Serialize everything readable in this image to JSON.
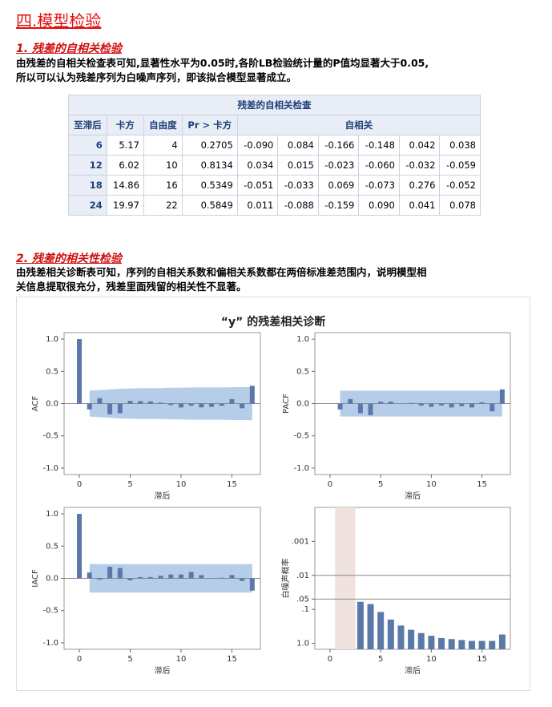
{
  "heading": "四.模型检验",
  "section1": {
    "title": "1. 残差的自相关检验",
    "text": [
      "由残差的自相关检查表可知,显著性水平为0.05时,各阶LB检验统计量的P值均显著大于0.05,",
      "所以可以认为残差序列为白噪声序列，即该拟合模型显著成立。"
    ]
  },
  "table": {
    "title": "残差的自相关检查",
    "columns": [
      "至滞后",
      "卡方",
      "自由度",
      "Pr > 卡方",
      "自相关"
    ],
    "rows": [
      [
        "6",
        "5.17",
        "4",
        "0.2705",
        "-0.090",
        "0.084",
        "-0.166",
        "-0.148",
        "0.042",
        "0.038"
      ],
      [
        "12",
        "6.02",
        "10",
        "0.8134",
        "0.034",
        "0.015",
        "-0.023",
        "-0.060",
        "-0.032",
        "-0.059"
      ],
      [
        "18",
        "14.86",
        "16",
        "0.5349",
        "-0.051",
        "-0.033",
        "0.069",
        "-0.073",
        "0.276",
        "-0.052"
      ],
      [
        "24",
        "19.97",
        "22",
        "0.5849",
        "0.011",
        "-0.088",
        "-0.159",
        "0.090",
        "0.041",
        "0.078"
      ]
    ]
  },
  "section2": {
    "title": "2. 残差的相关性检验",
    "text": [
      "由残差相关诊断表可知，序列的自相关系数和偏相关系数都在两倍标准差范围内，说明模型相",
      "关信息提取很充分，残差里面残留的相关性不显著。"
    ]
  },
  "figure_title": "“y” 的残差相关诊断",
  "chart_data": [
    {
      "type": "bar",
      "ylabel": "ACF",
      "xlabel": "滞后",
      "x": [
        0,
        1,
        2,
        3,
        4,
        5,
        6,
        7,
        8,
        9,
        10,
        11,
        12,
        13,
        14,
        15,
        16,
        17
      ],
      "values": [
        1.0,
        -0.09,
        0.084,
        -0.166,
        -0.148,
        0.042,
        0.038,
        0.034,
        0.015,
        -0.023,
        -0.06,
        -0.032,
        -0.059,
        -0.051,
        -0.033,
        0.069,
        -0.073,
        0.276
      ],
      "band": [
        null,
        0.2,
        0.21,
        0.22,
        0.23,
        0.235,
        0.24,
        0.24,
        0.24,
        0.245,
        0.245,
        0.25,
        0.25,
        0.25,
        0.25,
        0.255,
        0.255,
        0.26
      ],
      "color": "#5a79a8",
      "band_color": "#a9c4e6",
      "reflines": [
        0
      ],
      "xlim": [
        -1.5,
        17.8
      ],
      "xticks": [
        0,
        5,
        10,
        15
      ],
      "ylim": [
        -1.1,
        1.1
      ],
      "yticks": [
        {
          "value": -1,
          "label": "-1.0"
        },
        -0.5,
        {
          "value": 0,
          "label": "0.0"
        },
        0.5,
        {
          "value": 1,
          "label": "1.0"
        }
      ]
    },
    {
      "type": "bar",
      "ylabel": "PACF",
      "xlabel": "滞后",
      "x": [
        1,
        2,
        3,
        4,
        5,
        6,
        7,
        8,
        9,
        10,
        11,
        12,
        13,
        14,
        15,
        16,
        17
      ],
      "values": [
        -0.09,
        0.07,
        -0.15,
        -0.18,
        0.03,
        0.03,
        0.0,
        0.01,
        -0.03,
        -0.05,
        -0.03,
        -0.06,
        -0.04,
        -0.06,
        0.02,
        -0.12,
        0.22
      ],
      "band": [
        0.2,
        0.2,
        0.2,
        0.2,
        0.2,
        0.2,
        0.2,
        0.2,
        0.2,
        0.2,
        0.2,
        0.2,
        0.2,
        0.2,
        0.2,
        0.2,
        0.2
      ],
      "color": "#5a79a8",
      "band_color": "#a9c4e6",
      "reflines": [
        0
      ],
      "xlim": [
        -1.5,
        17.8
      ],
      "xticks": [
        0,
        5,
        10,
        15
      ],
      "ylim": [
        -1.1,
        1.1
      ],
      "yticks": [
        {
          "value": -1,
          "label": "-1.0"
        },
        -0.5,
        {
          "value": 0,
          "label": "0.0"
        },
        0.5,
        {
          "value": 1,
          "label": "1.0"
        }
      ]
    },
    {
      "type": "bar",
      "ylabel": "IACF",
      "xlabel": "滞后",
      "x": [
        0,
        1,
        2,
        3,
        4,
        5,
        6,
        7,
        8,
        9,
        10,
        11,
        12,
        13,
        14,
        15,
        16,
        17
      ],
      "values": [
        1.0,
        0.09,
        -0.02,
        0.18,
        0.16,
        -0.03,
        0.02,
        0.02,
        0.04,
        0.06,
        0.06,
        0.1,
        0.05,
        0.0,
        0.01,
        0.05,
        -0.04,
        -0.19
      ],
      "band": [
        null,
        0.22,
        0.22,
        0.22,
        0.22,
        0.22,
        0.22,
        0.22,
        0.22,
        0.22,
        0.22,
        0.22,
        0.22,
        0.22,
        0.22,
        0.22,
        0.22,
        0.22
      ],
      "color": "#5a79a8",
      "band_color": "#a9c4e6",
      "reflines": [
        0
      ],
      "xlim": [
        -1.5,
        17.8
      ],
      "xticks": [
        0,
        5,
        10,
        15
      ],
      "ylim": [
        -1.1,
        1.1
      ],
      "yticks": [
        {
          "value": -1,
          "label": "-1.0"
        },
        -0.5,
        {
          "value": 0,
          "label": "0.0"
        },
        0.5,
        {
          "value": 1,
          "label": "1.0"
        }
      ]
    },
    {
      "type": "bar",
      "ylabel": "白噪声概率",
      "xlabel": "滞后",
      "log_scale": true,
      "x": [
        3,
        4,
        5,
        6,
        7,
        8,
        9,
        10,
        11,
        12,
        13,
        14,
        15,
        16,
        17
      ],
      "values": [
        0.06,
        0.07,
        0.12,
        0.2,
        0.3,
        0.4,
        0.5,
        0.6,
        0.7,
        0.75,
        0.8,
        0.85,
        0.85,
        0.85,
        0.55
      ],
      "excluded_lags": [
        1,
        2
      ],
      "shade_color": "#f0e2df",
      "color": "#5a79a8",
      "reflines": [
        0.01,
        0.05
      ],
      "xlim": [
        -1.5,
        17.8
      ],
      "xticks": [
        0,
        5,
        10,
        15
      ],
      "ylim": [
        1.5,
        0.0001
      ],
      "yticks": [
        {
          "value": 1,
          "label": "1.0"
        },
        {
          "value": 0.1,
          "label": ".1"
        },
        {
          "value": 0.05,
          "label": ".05"
        },
        {
          "value": 0.01,
          "label": ".01"
        },
        {
          "value": 0.001,
          "label": ".001"
        }
      ]
    }
  ]
}
